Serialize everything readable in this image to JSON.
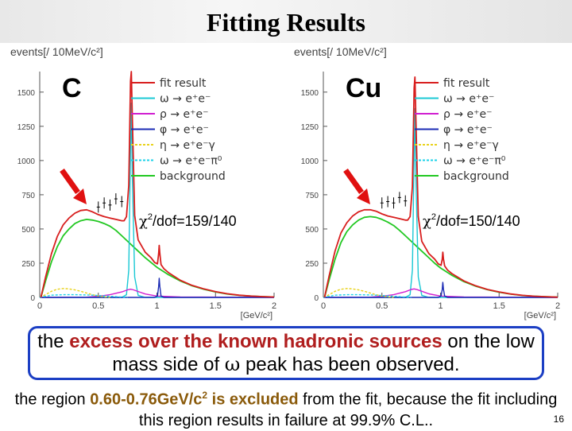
{
  "slide": {
    "title": "Fitting Results",
    "page_number": "16",
    "summary": {
      "part1": "the ",
      "highlight": "excess over the known hadronic sources",
      "part2": " on the low mass side of ",
      "omega": "ω",
      "part3": " peak has been observed."
    },
    "note": {
      "part1": "the region ",
      "highlight_range": "0.60-0.76GeV/c",
      "sup": "2",
      "highlight_excluded": " is excluded",
      "part2": " from the fit, because the fit including this region results in failure at 99.9% C.L.."
    }
  },
  "colors": {
    "fit_result": "#d81e1e",
    "omega": "#19c8d4",
    "rho": "#d01ed0",
    "phi": "#1a2ab4",
    "eta_dalitz": "#e8d21a",
    "omega_dalitz": "#1ad2e8",
    "background": "#22c822",
    "data": "#000000",
    "arrow": "#e01010"
  },
  "chart_data": [
    {
      "type": "line",
      "target": "C",
      "ylabel": "events[/ 10MeV/c²]",
      "xlabel": "[GeV/c²]",
      "xlim": [
        0,
        2
      ],
      "ylim": [
        0,
        1650
      ],
      "xticks": [
        "0",
        "0.5",
        "1",
        "1.5",
        "2"
      ],
      "yticks": [
        "0",
        "250",
        "500",
        "750",
        "1000",
        "1250",
        "1500"
      ],
      "chi2_base": "χ",
      "chi2_sup": "2",
      "chi2_rest": "/dof=159/140",
      "legend": [
        {
          "label": "fit result",
          "color_key": "fit_result",
          "dash": ""
        },
        {
          "label": "ω → e⁺e⁻",
          "color_key": "omega",
          "dash": ""
        },
        {
          "label": "ρ → e⁺e⁻",
          "color_key": "rho",
          "dash": ""
        },
        {
          "label": "φ → e⁺e⁻",
          "color_key": "phi",
          "dash": ""
        },
        {
          "label": "η → e⁺e⁻γ",
          "color_key": "eta_dalitz",
          "dash": "3,2"
        },
        {
          "label": "ω → e⁺e⁻π⁰",
          "color_key": "omega_dalitz",
          "dash": "3,2"
        },
        {
          "label": "background",
          "color_key": "background",
          "dash": ""
        }
      ],
      "series": [
        {
          "name": "background",
          "x": [
            0.01,
            0.05,
            0.1,
            0.15,
            0.2,
            0.25,
            0.3,
            0.35,
            0.4,
            0.45,
            0.5,
            0.55,
            0.6,
            0.65,
            0.7,
            0.75,
            0.8,
            0.85,
            0.9,
            0.95,
            1.0,
            1.1,
            1.2,
            1.3,
            1.4,
            1.5,
            1.6,
            1.7,
            1.8,
            1.9,
            2.0
          ],
          "y": [
            0,
            120,
            260,
            370,
            450,
            500,
            540,
            560,
            570,
            565,
            555,
            540,
            520,
            490,
            450,
            410,
            370,
            330,
            290,
            255,
            220,
            165,
            120,
            85,
            60,
            40,
            25,
            15,
            10,
            6,
            3
          ]
        },
        {
          "name": "omega",
          "x": [
            0,
            0.7,
            0.74,
            0.76,
            0.775,
            0.782,
            0.79,
            0.81,
            0.84,
            0.9,
            2.0
          ],
          "y": [
            0,
            0,
            20,
            200,
            1100,
            1420,
            900,
            150,
            15,
            0,
            0
          ]
        },
        {
          "name": "rho",
          "x": [
            0,
            0.4,
            0.5,
            0.6,
            0.7,
            0.75,
            0.775,
            0.8,
            0.85,
            0.9,
            1.0,
            1.2,
            2.0
          ],
          "y": [
            0,
            2,
            8,
            20,
            40,
            55,
            60,
            55,
            40,
            25,
            10,
            3,
            0
          ]
        },
        {
          "name": "phi",
          "x": [
            0,
            0.98,
            1.005,
            1.015,
            1.02,
            1.025,
            1.035,
            1.06,
            2.0
          ],
          "y": [
            0,
            0,
            10,
            80,
            140,
            80,
            10,
            0,
            0
          ]
        },
        {
          "name": "eta_dalitz",
          "x": [
            0,
            0.05,
            0.1,
            0.15,
            0.2,
            0.25,
            0.3,
            0.35,
            0.4,
            0.45,
            0.5,
            0.55,
            0.6
          ],
          "y": [
            0,
            20,
            45,
            60,
            65,
            62,
            55,
            45,
            32,
            20,
            10,
            4,
            0
          ]
        },
        {
          "name": "omega_dalitz",
          "x": [
            0,
            0.05,
            0.1,
            0.2,
            0.3,
            0.4,
            0.5,
            0.6,
            0.7,
            0.75
          ],
          "y": [
            0,
            8,
            16,
            20,
            20,
            18,
            14,
            8,
            3,
            0
          ]
        },
        {
          "name": "fit result",
          "x": [
            0.01,
            0.05,
            0.1,
            0.15,
            0.2,
            0.25,
            0.3,
            0.35,
            0.4,
            0.45,
            0.5,
            0.55,
            0.6,
            0.65,
            0.7,
            0.72,
            0.74,
            0.76,
            0.775,
            0.782,
            0.79,
            0.81,
            0.84,
            0.9,
            0.95,
            0.98,
            1.005,
            1.015,
            1.02,
            1.025,
            1.035,
            1.06,
            1.1,
            1.2,
            1.3,
            1.4,
            1.5,
            1.6,
            1.7,
            1.8,
            1.9,
            2.0
          ],
          "y": [
            0,
            150,
            320,
            445,
            530,
            580,
            615,
            635,
            640,
            625,
            605,
            590,
            580,
            570,
            560,
            560,
            590,
            820,
            1580,
            1650,
            1330,
            600,
            420,
            330,
            290,
            255,
            245,
            320,
            380,
            320,
            240,
            210,
            180,
            125,
            88,
            62,
            42,
            27,
            16,
            10,
            6,
            3
          ]
        }
      ],
      "data_points": {
        "x": [
          0.5,
          0.55,
          0.6,
          0.65,
          0.7
        ],
        "y": [
          660,
          690,
          675,
          720,
          700
        ]
      }
    },
    {
      "type": "line",
      "target": "Cu",
      "ylabel": "events[/ 10MeV/c²]",
      "xlabel": "[GeV/c²]",
      "xlim": [
        0,
        2
      ],
      "ylim": [
        0,
        1650
      ],
      "xticks": [
        "0",
        "0.5",
        "1",
        "1.5",
        "2"
      ],
      "yticks": [
        "0",
        "250",
        "500",
        "750",
        "1000",
        "1250",
        "1500"
      ],
      "chi2_base": "χ",
      "chi2_sup": "2",
      "chi2_rest": "/dof=150/140",
      "legend": [
        {
          "label": "fit result",
          "color_key": "fit_result",
          "dash": ""
        },
        {
          "label": "ω → e⁺e⁻",
          "color_key": "omega",
          "dash": ""
        },
        {
          "label": "ρ → e⁺e⁻",
          "color_key": "rho",
          "dash": ""
        },
        {
          "label": "φ → e⁺e⁻",
          "color_key": "phi",
          "dash": ""
        },
        {
          "label": "η → e⁺e⁻γ",
          "color_key": "eta_dalitz",
          "dash": "3,2"
        },
        {
          "label": "ω → e⁺e⁻π⁰",
          "color_key": "omega_dalitz",
          "dash": "3,2"
        },
        {
          "label": "background",
          "color_key": "background",
          "dash": ""
        }
      ],
      "series": [
        {
          "name": "background",
          "x": [
            0.01,
            0.05,
            0.1,
            0.15,
            0.2,
            0.25,
            0.3,
            0.35,
            0.4,
            0.45,
            0.5,
            0.55,
            0.6,
            0.65,
            0.7,
            0.75,
            0.8,
            0.85,
            0.9,
            0.95,
            1.0,
            1.1,
            1.2,
            1.3,
            1.4,
            1.5,
            1.6,
            1.7,
            1.8,
            1.9,
            2.0
          ],
          "y": [
            0,
            130,
            280,
            400,
            480,
            530,
            565,
            585,
            590,
            585,
            570,
            550,
            525,
            490,
            450,
            410,
            370,
            330,
            290,
            250,
            215,
            160,
            115,
            82,
            57,
            38,
            24,
            14,
            9,
            5,
            2
          ]
        },
        {
          "name": "omega",
          "x": [
            0,
            0.7,
            0.74,
            0.76,
            0.775,
            0.782,
            0.79,
            0.81,
            0.84,
            0.9,
            2.0
          ],
          "y": [
            0,
            0,
            20,
            200,
            1050,
            1380,
            880,
            150,
            15,
            0,
            0
          ]
        },
        {
          "name": "rho",
          "x": [
            0,
            0.4,
            0.5,
            0.6,
            0.7,
            0.75,
            0.775,
            0.8,
            0.85,
            0.9,
            1.0,
            1.2,
            2.0
          ],
          "y": [
            0,
            2,
            8,
            20,
            42,
            58,
            62,
            57,
            42,
            26,
            10,
            3,
            0
          ]
        },
        {
          "name": "phi",
          "x": [
            0,
            0.98,
            1.005,
            1.015,
            1.02,
            1.025,
            1.035,
            1.06,
            2.0
          ],
          "y": [
            0,
            0,
            10,
            60,
            110,
            60,
            10,
            0,
            0
          ]
        },
        {
          "name": "eta_dalitz",
          "x": [
            0,
            0.05,
            0.1,
            0.15,
            0.2,
            0.25,
            0.3,
            0.35,
            0.4,
            0.45,
            0.5,
            0.55,
            0.6
          ],
          "y": [
            0,
            20,
            45,
            60,
            65,
            62,
            55,
            45,
            32,
            20,
            10,
            4,
            0
          ]
        },
        {
          "name": "omega_dalitz",
          "x": [
            0,
            0.05,
            0.1,
            0.2,
            0.3,
            0.4,
            0.5,
            0.6,
            0.7,
            0.75
          ],
          "y": [
            0,
            8,
            16,
            20,
            20,
            18,
            14,
            8,
            3,
            0
          ]
        },
        {
          "name": "fit result",
          "x": [
            0.01,
            0.05,
            0.1,
            0.15,
            0.2,
            0.25,
            0.3,
            0.35,
            0.4,
            0.45,
            0.5,
            0.55,
            0.6,
            0.65,
            0.7,
            0.72,
            0.74,
            0.76,
            0.775,
            0.782,
            0.79,
            0.81,
            0.84,
            0.9,
            0.95,
            0.98,
            1.005,
            1.015,
            1.02,
            1.025,
            1.035,
            1.06,
            1.1,
            1.2,
            1.3,
            1.4,
            1.5,
            1.6,
            1.7,
            1.8,
            1.9,
            2.0
          ],
          "y": [
            0,
            160,
            340,
            470,
            545,
            595,
            625,
            640,
            640,
            630,
            610,
            595,
            585,
            575,
            565,
            565,
            590,
            810,
            1530,
            1610,
            1300,
            590,
            410,
            320,
            280,
            245,
            235,
            280,
            330,
            280,
            230,
            200,
            172,
            120,
            85,
            58,
            40,
            25,
            15,
            9,
            5,
            2
          ]
        }
      ],
      "data_points": {
        "x": [
          0.5,
          0.55,
          0.6,
          0.65,
          0.7
        ],
        "y": [
          690,
          700,
          690,
          730,
          705
        ]
      }
    }
  ]
}
